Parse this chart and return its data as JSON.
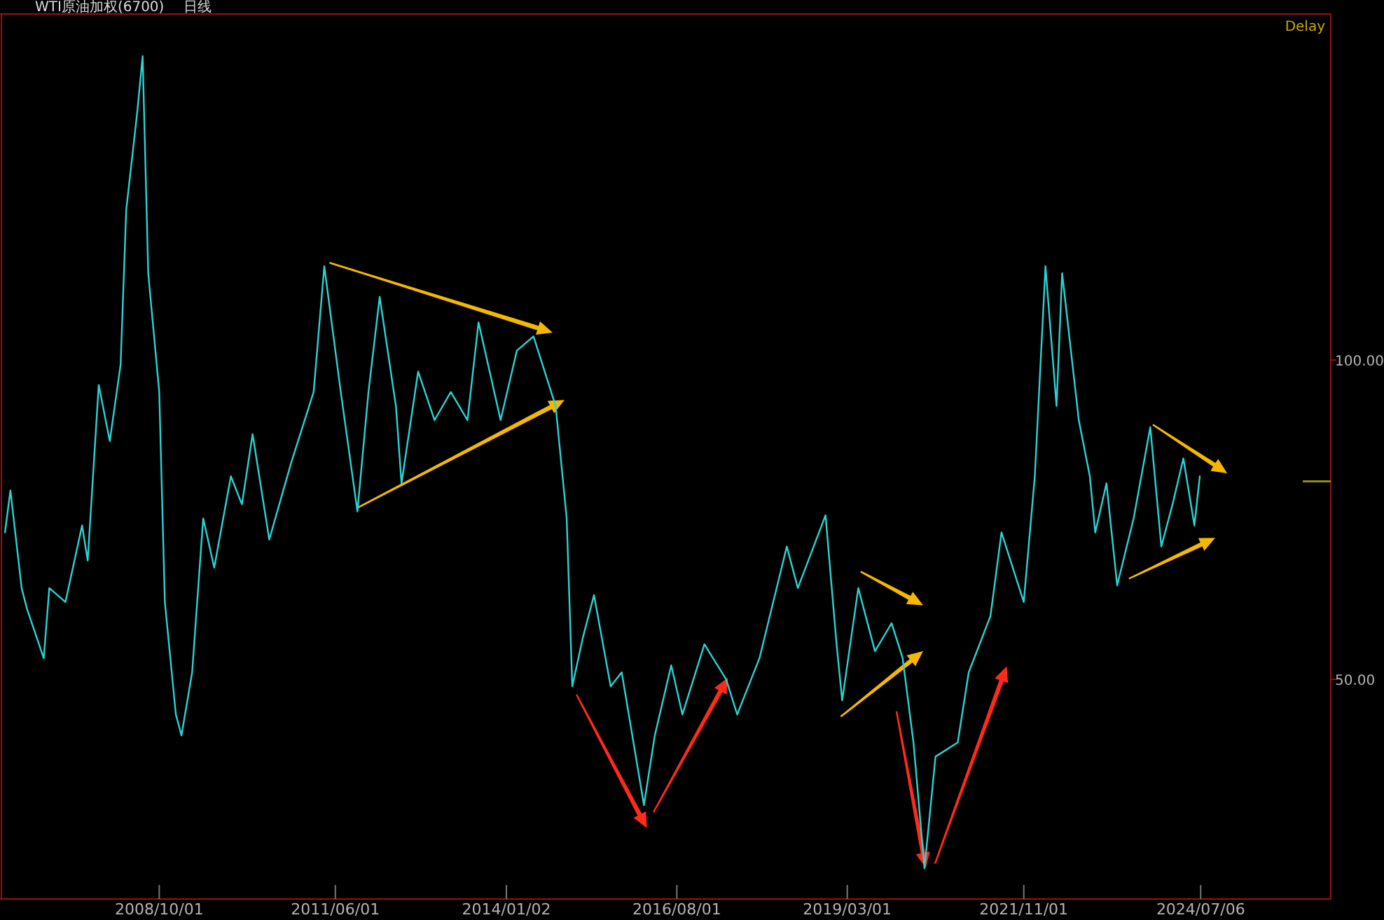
{
  "chart_data": {
    "type": "line",
    "title": "WTI原油加权(6700)",
    "annotations": [
      "日线",
      "Delay"
    ],
    "xlim": [
      "2006-05-20",
      "2026-06-25"
    ],
    "ylim": [
      15.6,
      154.2
    ],
    "yticks": [
      {
        "value": 100,
        "label": "100.00"
      },
      {
        "value": 50,
        "label": "50.00"
      }
    ],
    "xticks": [
      {
        "value": "2008-10-01",
        "label": "2008/10/01"
      },
      {
        "value": "2011-06-01",
        "label": "2011/06/01"
      },
      {
        "value": "2014-01-02",
        "label": "2014/01/02"
      },
      {
        "value": "2016-08-01",
        "label": "2016/08/01"
      },
      {
        "value": "2019-03-01",
        "label": "2019/03/01"
      },
      {
        "value": "2021-11-01",
        "label": "2021/11/01"
      },
      {
        "value": "2024-07-06",
        "label": "2024/07/06"
      }
    ],
    "grid": false,
    "series": [
      {
        "color": "#2ad4d4",
        "x": [
          "2006-06",
          "2006-07",
          "2006-09",
          "2006-10",
          "2007-01",
          "2007-02",
          "2007-05",
          "2007-08",
          "2007-09",
          "2007-11",
          "2008-01",
          "2008-03",
          "2008-04",
          "2008-06",
          "2008-07",
          "2008-08",
          "2008-10",
          "2008-11",
          "2009-01",
          "2009-02",
          "2009-04",
          "2009-06",
          "2009-08",
          "2009-11",
          "2010-01",
          "2010-03",
          "2010-06",
          "2010-10",
          "2011-02",
          "2011-04",
          "2011-07",
          "2011-10",
          "2011-12",
          "2012-02",
          "2012-05",
          "2012-06",
          "2012-09",
          "2012-12",
          "2013-03",
          "2013-06",
          "2013-08",
          "2013-12",
          "2014-03",
          "2014-06",
          "2014-10",
          "2014-12",
          "2015-01",
          "2015-03",
          "2015-05",
          "2015-08",
          "2015-10",
          "2016-02",
          "2016-04",
          "2016-07",
          "2016-09",
          "2017-01",
          "2017-05",
          "2017-07",
          "2017-11",
          "2018-04",
          "2018-06",
          "2018-11",
          "2019-01",
          "2019-02",
          "2019-05",
          "2019-08",
          "2019-11",
          "2020-01",
          "2020-03",
          "2020-05",
          "2020-07",
          "2020-11",
          "2021-01",
          "2021-05",
          "2021-07",
          "2021-11",
          "2022-01",
          "2022-03",
          "2022-05",
          "2022-06",
          "2022-09",
          "2022-11",
          "2022-12",
          "2023-02",
          "2023-04",
          "2023-07",
          "2023-10",
          "2023-12",
          "2024-02",
          "2024-04",
          "2024-06",
          "2024-07"
        ],
        "values": [
          73.0,
          79.6,
          64.3,
          61.0,
          53.3,
          64.3,
          62.1,
          74.1,
          68.6,
          96.1,
          87.3,
          99.3,
          123.5,
          138.8,
          147.6,
          113.6,
          95.0,
          62.1,
          44.5,
          41.2,
          51.1,
          75.2,
          67.5,
          81.8,
          77.4,
          88.4,
          71.9,
          84.0,
          95.0,
          114.7,
          95.0,
          76.3,
          95.0,
          109.9,
          92.8,
          80.7,
          98.2,
          90.6,
          95.0,
          90.6,
          105.9,
          90.6,
          101.5,
          103.7,
          92.8,
          75.2,
          48.9,
          56.6,
          63.2,
          48.9,
          51.1,
          30.3,
          41.2,
          52.2,
          44.5,
          55.5,
          50.0,
          44.5,
          53.3,
          70.8,
          64.3,
          75.7,
          55.5,
          46.7,
          64.3,
          54.4,
          58.8,
          53.3,
          40.1,
          20.4,
          37.9,
          40.1,
          51.1,
          59.9,
          73.0,
          62.1,
          81.8,
          114.7,
          92.8,
          113.6,
          90.6,
          81.8,
          73.0,
          80.7,
          64.7,
          75.2,
          89.5,
          70.8,
          77.4,
          84.6,
          74.1,
          81.8
        ]
      }
    ]
  }
}
